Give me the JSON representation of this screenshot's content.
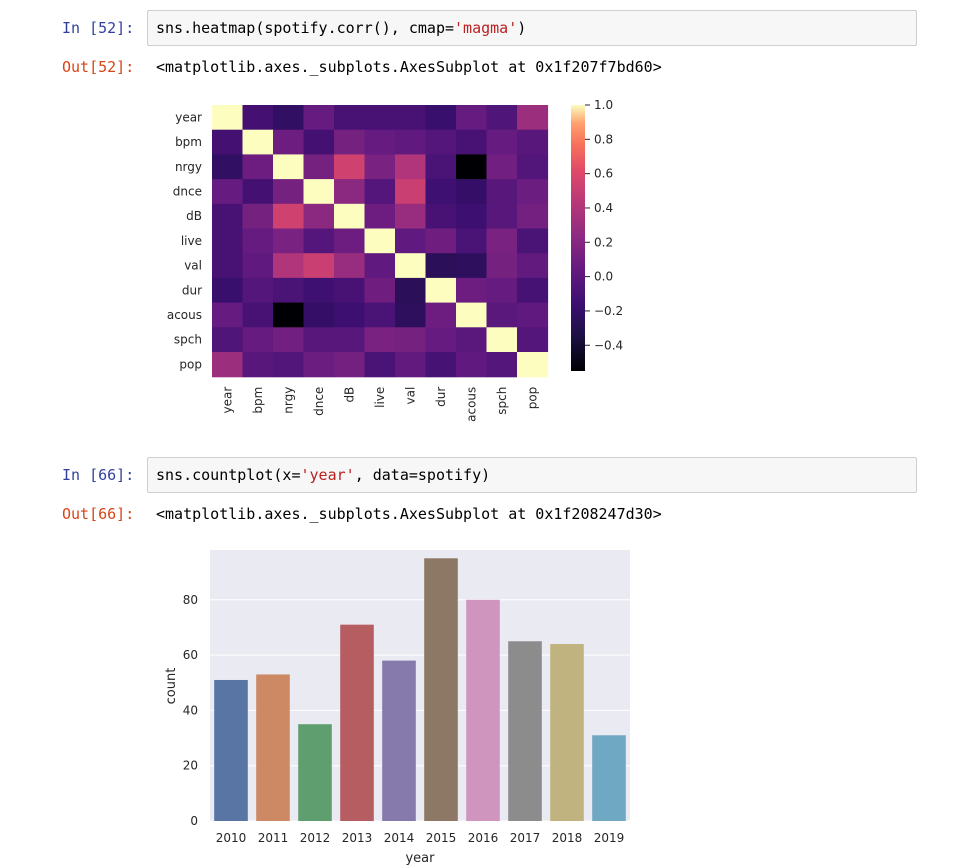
{
  "cells": [
    {
      "in_prompt": "In [52]:",
      "code": {
        "prefix": "sns.heatmap(spotify.corr(), cmap=",
        "string": "'magma'",
        "suffix": ")"
      },
      "out_prompt": "Out[52]:",
      "output": "<matplotlib.axes._subplots.AxesSubplot at 0x1f207f7bd60>"
    },
    {
      "in_prompt": "In [66]:",
      "code": {
        "prefix": "sns.countplot(x=",
        "string": "'year'",
        "suffix": ", data=spotify)"
      },
      "out_prompt": "Out[66]:",
      "output": "<matplotlib.axes._subplots.AxesSubplot at 0x1f208247d30>"
    }
  ],
  "chart_data": [
    {
      "type": "heatmap",
      "colormap": "magma",
      "labels": [
        "year",
        "bpm",
        "nrgy",
        "dnce",
        "dB",
        "live",
        "val",
        "dur",
        "acous",
        "spch",
        "pop"
      ],
      "matrix": [
        [
          1.0,
          -0.12,
          -0.22,
          0.05,
          -0.1,
          -0.1,
          -0.1,
          -0.18,
          0.05,
          -0.06,
          0.3
        ],
        [
          -0.12,
          1.0,
          0.08,
          -0.12,
          0.12,
          0.05,
          0.02,
          -0.04,
          -0.1,
          0.05,
          -0.02
        ],
        [
          -0.22,
          0.08,
          1.0,
          0.12,
          0.54,
          0.14,
          0.4,
          -0.09,
          -0.55,
          0.1,
          -0.05
        ],
        [
          0.05,
          -0.12,
          0.12,
          1.0,
          0.22,
          -0.04,
          0.51,
          -0.15,
          -0.2,
          -0.02,
          0.07
        ],
        [
          -0.1,
          0.12,
          0.54,
          0.22,
          1.0,
          0.08,
          0.28,
          -0.1,
          -0.16,
          -0.02,
          0.11
        ],
        [
          -0.1,
          0.05,
          0.14,
          -0.04,
          0.08,
          1.0,
          0.02,
          0.09,
          -0.09,
          0.14,
          -0.09
        ],
        [
          -0.1,
          0.02,
          0.4,
          0.51,
          0.28,
          0.02,
          1.0,
          -0.26,
          -0.24,
          0.12,
          0.03
        ],
        [
          -0.18,
          -0.04,
          -0.09,
          -0.15,
          -0.1,
          0.09,
          -0.26,
          1.0,
          0.08,
          0.05,
          -0.11
        ],
        [
          0.05,
          -0.1,
          -0.55,
          -0.2,
          -0.16,
          -0.09,
          -0.24,
          0.08,
          1.0,
          -0.01,
          0.02
        ],
        [
          -0.06,
          0.05,
          0.1,
          -0.02,
          -0.02,
          0.14,
          0.12,
          0.05,
          -0.01,
          1.0,
          -0.04
        ],
        [
          0.3,
          -0.02,
          -0.05,
          0.07,
          0.11,
          -0.09,
          0.03,
          -0.11,
          0.02,
          -0.04,
          1.0
        ]
      ],
      "vmin": -0.55,
      "vmax": 1.0,
      "colorbar_ticks": [
        1.0,
        0.8,
        0.6,
        0.4,
        0.2,
        0.0,
        -0.2,
        -0.4
      ],
      "colorbar_tick_labels": [
        "1.0",
        "0.8",
        "0.6",
        "0.4",
        "0.2",
        "0.0",
        "−0.2",
        "−0.4"
      ]
    },
    {
      "type": "bar",
      "categories": [
        "2010",
        "2011",
        "2012",
        "2013",
        "2014",
        "2015",
        "2016",
        "2017",
        "2018",
        "2019"
      ],
      "values": [
        51,
        53,
        35,
        71,
        58,
        95,
        80,
        65,
        64,
        31
      ],
      "colors": [
        "#5975a4",
        "#cc8963",
        "#5f9e6e",
        "#b55d60",
        "#857aab",
        "#8d7866",
        "#d095bf",
        "#8c8c8c",
        "#c1b37f",
        "#6fa8c2"
      ],
      "xlabel": "year",
      "ylabel": "count",
      "ylim": [
        0,
        98
      ],
      "yticks": [
        0,
        20,
        40,
        60,
        80
      ],
      "grid": true,
      "background": "#eaeaf2"
    }
  ]
}
